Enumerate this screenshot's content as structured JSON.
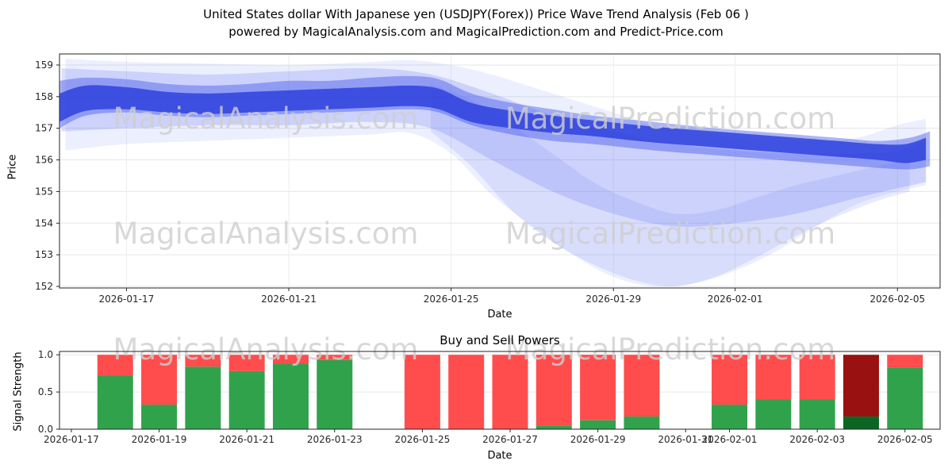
{
  "figure": {
    "title_line1": "United States dollar With Japanese yen (USDJPY(Forex)) Price Wave Trend Analysis (Feb 06 )",
    "title_line2": "powered by MagicalAnalysis.com and MagicalPrediction.com and Predict-Price.com",
    "watermark_left": "MagicalAnalysis.com",
    "watermark_right": "MagicalPrediction.com"
  },
  "chart_data": [
    {
      "type": "area",
      "name": "price_wave_trend",
      "xlabel": "Date",
      "ylabel": "Price",
      "ylim": [
        152,
        159.2
      ],
      "grid": true,
      "y_ticks": [
        "152",
        "153",
        "154",
        "155",
        "156",
        "157",
        "158",
        "159"
      ],
      "x_ticks": [
        {
          "label": "2026-01-17",
          "day": 2
        },
        {
          "label": "2026-01-21",
          "day": 6
        },
        {
          "label": "2026-01-25",
          "day": 10
        },
        {
          "label": "2026-01-29",
          "day": 14
        },
        {
          "label": "2026-02-01",
          "day": 17
        },
        {
          "label": "2026-02-05",
          "day": 21
        }
      ],
      "bands": [
        {
          "name": "outer",
          "color": "rgba(110,130,245,0.13)",
          "pts": [
            [
              0.5,
              156.3,
              159.2
            ],
            [
              2,
              156.5,
              159.1
            ],
            [
              4,
              156.6,
              159.05
            ],
            [
              6,
              156.7,
              159.0
            ],
            [
              8,
              156.8,
              159.1
            ],
            [
              9,
              156.85,
              159.15
            ],
            [
              10,
              156.2,
              159.0
            ],
            [
              11,
              154.9,
              158.7
            ],
            [
              12,
              153.9,
              158.3
            ],
            [
              13,
              153.0,
              157.9
            ],
            [
              14,
              152.3,
              157.5
            ],
            [
              15,
              152.0,
              157.1
            ],
            [
              16,
              152.1,
              156.9
            ],
            [
              17,
              152.5,
              156.7
            ],
            [
              18,
              153.1,
              156.6
            ],
            [
              19,
              153.9,
              156.6
            ],
            [
              20,
              154.6,
              156.7
            ],
            [
              21,
              155.0,
              157.1
            ],
            [
              21.7,
              155.2,
              157.3
            ]
          ]
        },
        {
          "name": "dive-low",
          "color": "rgba(110,130,245,0.16)",
          "pts": [
            [
              9.5,
              156.9,
              158.4
            ],
            [
              10.5,
              155.8,
              157.9
            ],
            [
              11.5,
              154.4,
              157.1
            ],
            [
              12.5,
              153.4,
              156.2
            ],
            [
              13.5,
              152.7,
              155.3
            ],
            [
              14.5,
              152.2,
              154.7
            ],
            [
              15.5,
              152.0,
              154.3
            ],
            [
              16.5,
              152.3,
              154.4
            ],
            [
              17.5,
              152.9,
              154.8
            ],
            [
              18.5,
              153.6,
              155.2
            ],
            [
              19.5,
              154.2,
              155.5
            ],
            [
              20.5,
              154.7,
              155.8
            ],
            [
              21.3,
              155.0,
              156.0
            ]
          ]
        },
        {
          "name": "mid",
          "color": "rgba(90,110,240,0.22)",
          "pts": [
            [
              0.4,
              156.9,
              158.9
            ],
            [
              2,
              157.0,
              158.8
            ],
            [
              4,
              157.1,
              158.7
            ],
            [
              6,
              157.1,
              158.8
            ],
            [
              8,
              157.2,
              158.9
            ],
            [
              9.5,
              157.0,
              158.7
            ],
            [
              11,
              156.0,
              158.1
            ],
            [
              12.5,
              155.0,
              157.4
            ],
            [
              14,
              154.3,
              156.9
            ],
            [
              15.5,
              153.9,
              156.5
            ],
            [
              17,
              154.0,
              156.3
            ],
            [
              18.5,
              154.3,
              156.2
            ],
            [
              20,
              154.8,
              156.2
            ],
            [
              21,
              155.1,
              156.3
            ],
            [
              21.7,
              155.3,
              156.6
            ]
          ]
        },
        {
          "name": "core-wide",
          "color": "rgba(70,90,235,0.45)",
          "pts": [
            [
              0.35,
              157.0,
              158.5
            ],
            [
              1,
              157.4,
              158.6
            ],
            [
              2,
              157.5,
              158.55
            ],
            [
              3,
              157.4,
              158.4
            ],
            [
              4,
              157.35,
              158.35
            ],
            [
              5,
              157.4,
              158.4
            ],
            [
              6,
              157.45,
              158.5
            ],
            [
              7,
              157.5,
              158.5
            ],
            [
              8,
              157.55,
              158.6
            ],
            [
              9,
              157.6,
              158.65
            ],
            [
              9.7,
              157.5,
              158.55
            ],
            [
              10.5,
              157.1,
              158.1
            ],
            [
              11.5,
              156.8,
              157.8
            ],
            [
              12.5,
              156.6,
              157.6
            ],
            [
              13.5,
              156.5,
              157.4
            ],
            [
              15,
              156.3,
              157.2
            ],
            [
              16.5,
              156.15,
              157.0
            ],
            [
              18,
              156.0,
              156.85
            ],
            [
              19.5,
              155.85,
              156.7
            ],
            [
              20.5,
              155.75,
              156.6
            ],
            [
              21.3,
              155.7,
              156.7
            ],
            [
              21.8,
              155.8,
              156.9
            ]
          ]
        },
        {
          "name": "core",
          "color": "rgba(40,60,220,0.8)",
          "pts": [
            [
              0.35,
              157.2,
              158.1
            ],
            [
              1,
              157.55,
              158.35
            ],
            [
              2,
              157.6,
              158.3
            ],
            [
              3,
              157.5,
              158.15
            ],
            [
              4,
              157.45,
              158.1
            ],
            [
              5,
              157.5,
              158.15
            ],
            [
              6,
              157.55,
              158.2
            ],
            [
              7,
              157.6,
              158.25
            ],
            [
              8,
              157.65,
              158.3
            ],
            [
              9,
              157.7,
              158.35
            ],
            [
              9.7,
              157.6,
              158.25
            ],
            [
              10.5,
              157.2,
              157.8
            ],
            [
              11.5,
              157.0,
              157.55
            ],
            [
              12.5,
              156.85,
              157.4
            ],
            [
              13.5,
              156.75,
              157.25
            ],
            [
              15,
              156.55,
              157.05
            ],
            [
              16.5,
              156.4,
              156.9
            ],
            [
              18,
              156.25,
              156.75
            ],
            [
              19.5,
              156.1,
              156.6
            ],
            [
              20.5,
              156.0,
              156.5
            ],
            [
              21.2,
              155.9,
              156.5
            ],
            [
              21.7,
              156.0,
              156.7
            ]
          ]
        }
      ]
    },
    {
      "type": "bar",
      "name": "buy_sell_powers",
      "title": "Buy and Sell Powers",
      "xlabel": "Date",
      "ylabel": "Signal Strength",
      "ylim": [
        0,
        1.04
      ],
      "stacked": true,
      "y_ticks": [
        "0.0",
        "0.5",
        "1.0"
      ],
      "x_ticks": [
        {
          "label": "2026-01-17",
          "day": 2
        },
        {
          "label": "2026-01-19",
          "day": 4
        },
        {
          "label": "2026-01-21",
          "day": 6
        },
        {
          "label": "2026-01-23",
          "day": 8
        },
        {
          "label": "2026-01-25",
          "day": 10
        },
        {
          "label": "2026-01-27",
          "day": 12
        },
        {
          "label": "2026-01-29",
          "day": 14
        },
        {
          "label": "2026-01-31",
          "day": 16
        },
        {
          "label": "2026-02-01",
          "day": 17
        },
        {
          "label": "2026-02-03",
          "day": 19
        },
        {
          "label": "2026-02-05",
          "day": 21
        }
      ],
      "colors": {
        "buy": "#31a24c",
        "sell": "#ff4d4d",
        "buy_dark": "#0b6623",
        "sell_dark": "#991111"
      },
      "bars": [
        {
          "date": "2026-01-18",
          "day": 3,
          "buy": 0.72,
          "sell": 0.28,
          "dark": false
        },
        {
          "date": "2026-01-19",
          "day": 4,
          "buy": 0.33,
          "sell": 0.67,
          "dark": false
        },
        {
          "date": "2026-01-20",
          "day": 5,
          "buy": 0.84,
          "sell": 0.16,
          "dark": false
        },
        {
          "date": "2026-01-21",
          "day": 6,
          "buy": 0.78,
          "sell": 0.22,
          "dark": false
        },
        {
          "date": "2026-01-22",
          "day": 7,
          "buy": 0.88,
          "sell": 0.12,
          "dark": false
        },
        {
          "date": "2026-01-23",
          "day": 8,
          "buy": 0.93,
          "sell": 0.07,
          "dark": false
        },
        {
          "date": "2026-01-25",
          "day": 10,
          "buy": 0.0,
          "sell": 1.0,
          "dark": false
        },
        {
          "date": "2026-01-26",
          "day": 11,
          "buy": 0.0,
          "sell": 1.0,
          "dark": false
        },
        {
          "date": "2026-01-27",
          "day": 12,
          "buy": 0.0,
          "sell": 1.0,
          "dark": false
        },
        {
          "date": "2026-01-28",
          "day": 13,
          "buy": 0.05,
          "sell": 0.95,
          "dark": false
        },
        {
          "date": "2026-01-29",
          "day": 14,
          "buy": 0.12,
          "sell": 0.88,
          "dark": false
        },
        {
          "date": "2026-01-30",
          "day": 15,
          "buy": 0.17,
          "sell": 0.83,
          "dark": false
        },
        {
          "date": "2026-02-01",
          "day": 17,
          "buy": 0.33,
          "sell": 0.67,
          "dark": false
        },
        {
          "date": "2026-02-02",
          "day": 18,
          "buy": 0.4,
          "sell": 0.6,
          "dark": false
        },
        {
          "date": "2026-02-03",
          "day": 19,
          "buy": 0.4,
          "sell": 0.6,
          "dark": false
        },
        {
          "date": "2026-02-04",
          "day": 20,
          "buy": 0.17,
          "sell": 0.83,
          "dark": true
        },
        {
          "date": "2026-02-05",
          "day": 21,
          "buy": 0.83,
          "sell": 0.17,
          "dark": false
        }
      ]
    }
  ]
}
